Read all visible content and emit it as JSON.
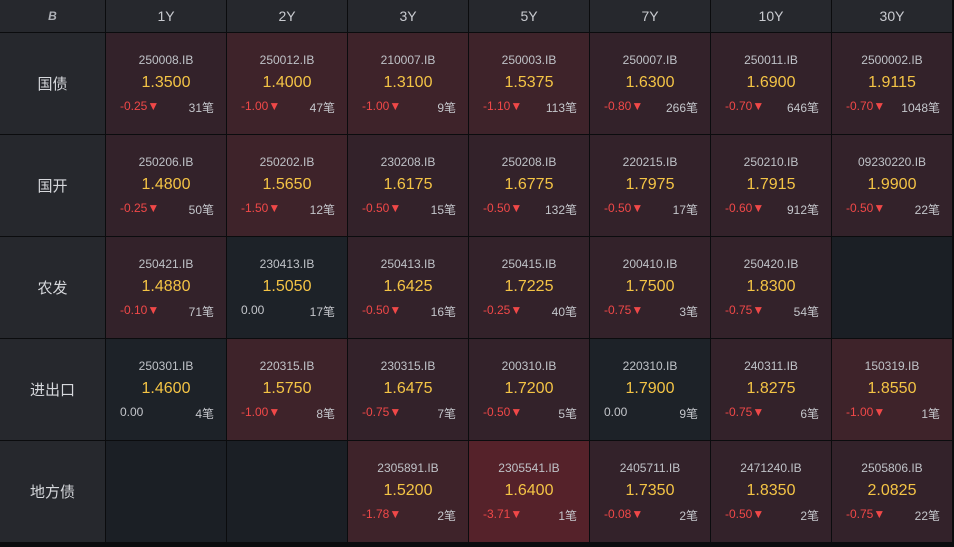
{
  "header": {
    "corner_icon": "logo-icon",
    "corner_text": "B",
    "tenors": [
      "1Y",
      "2Y",
      "3Y",
      "5Y",
      "7Y",
      "10Y",
      "30Y"
    ]
  },
  "rows": [
    {
      "label": "国债",
      "cells": [
        {
          "code": "250008.IB",
          "yield": "1.3500",
          "change": "-0.25▼",
          "count": "31笔",
          "tone": "t1"
        },
        {
          "code": "250012.IB",
          "yield": "1.4000",
          "change": "-1.00▼",
          "count": "47笔",
          "tone": "t2"
        },
        {
          "code": "210007.IB",
          "yield": "1.3100",
          "change": "-1.00▼",
          "count": "9笔",
          "tone": "t2"
        },
        {
          "code": "250003.IB",
          "yield": "1.5375",
          "change": "-1.10▼",
          "count": "113笔",
          "tone": "t2"
        },
        {
          "code": "250007.IB",
          "yield": "1.6300",
          "change": "-0.80▼",
          "count": "266笔",
          "tone": "t1"
        },
        {
          "code": "250011.IB",
          "yield": "1.6900",
          "change": "-0.70▼",
          "count": "646笔",
          "tone": "t1"
        },
        {
          "code": "2500002.IB",
          "yield": "1.9115",
          "change": "-0.70▼",
          "count": "1048笔",
          "tone": "t1"
        }
      ]
    },
    {
      "label": "国开",
      "cells": [
        {
          "code": "250206.IB",
          "yield": "1.4800",
          "change": "-0.25▼",
          "count": "50笔",
          "tone": "t1"
        },
        {
          "code": "250202.IB",
          "yield": "1.5650",
          "change": "-1.50▼",
          "count": "12笔",
          "tone": "t2"
        },
        {
          "code": "230208.IB",
          "yield": "1.6175",
          "change": "-0.50▼",
          "count": "15笔",
          "tone": "t1"
        },
        {
          "code": "250208.IB",
          "yield": "1.6775",
          "change": "-0.50▼",
          "count": "132笔",
          "tone": "t1"
        },
        {
          "code": "220215.IB",
          "yield": "1.7975",
          "change": "-0.50▼",
          "count": "17笔",
          "tone": "t1"
        },
        {
          "code": "250210.IB",
          "yield": "1.7915",
          "change": "-0.60▼",
          "count": "912笔",
          "tone": "t1"
        },
        {
          "code": "09230220.IB",
          "yield": "1.9900",
          "change": "-0.50▼",
          "count": "22笔",
          "tone": "t1"
        }
      ]
    },
    {
      "label": "农发",
      "cells": [
        {
          "code": "250421.IB",
          "yield": "1.4880",
          "change": "-0.10▼",
          "count": "71笔",
          "tone": "t1"
        },
        {
          "code": "230413.IB",
          "yield": "1.5050",
          "change": "0.00",
          "count": "17笔",
          "tone": "neutral"
        },
        {
          "code": "250413.IB",
          "yield": "1.6425",
          "change": "-0.50▼",
          "count": "16笔",
          "tone": "t1"
        },
        {
          "code": "250415.IB",
          "yield": "1.7225",
          "change": "-0.25▼",
          "count": "40笔",
          "tone": "t1"
        },
        {
          "code": "200410.IB",
          "yield": "1.7500",
          "change": "-0.75▼",
          "count": "3笔",
          "tone": "t1"
        },
        {
          "code": "250420.IB",
          "yield": "1.8300",
          "change": "-0.75▼",
          "count": "54笔",
          "tone": "t1"
        },
        null
      ]
    },
    {
      "label": "进出口",
      "cells": [
        {
          "code": "250301.IB",
          "yield": "1.4600",
          "change": "0.00",
          "count": "4笔",
          "tone": "neutral"
        },
        {
          "code": "220315.IB",
          "yield": "1.5750",
          "change": "-1.00▼",
          "count": "8笔",
          "tone": "t2"
        },
        {
          "code": "230315.IB",
          "yield": "1.6475",
          "change": "-0.75▼",
          "count": "7笔",
          "tone": "t1"
        },
        {
          "code": "200310.IB",
          "yield": "1.7200",
          "change": "-0.50▼",
          "count": "5笔",
          "tone": "t1"
        },
        {
          "code": "220310.IB",
          "yield": "1.7900",
          "change": "0.00",
          "count": "9笔",
          "tone": "neutral"
        },
        {
          "code": "240311.IB",
          "yield": "1.8275",
          "change": "-0.75▼",
          "count": "6笔",
          "tone": "t1"
        },
        {
          "code": "150319.IB",
          "yield": "1.8550",
          "change": "-1.00▼",
          "count": "1笔",
          "tone": "t2"
        }
      ]
    },
    {
      "label": "地方债",
      "cells": [
        null,
        null,
        {
          "code": "2305891.IB",
          "yield": "1.5200",
          "change": "-1.78▼",
          "count": "2笔",
          "tone": "t2"
        },
        {
          "code": "2305541.IB",
          "yield": "1.6400",
          "change": "-3.71▼",
          "count": "1笔",
          "tone": "t3"
        },
        {
          "code": "2405711.IB",
          "yield": "1.7350",
          "change": "-0.08▼",
          "count": "2笔",
          "tone": "t1"
        },
        {
          "code": "2471240.IB",
          "yield": "1.8350",
          "change": "-0.50▼",
          "count": "2笔",
          "tone": "t1"
        },
        {
          "code": "2505806.IB",
          "yield": "2.0825",
          "change": "-0.75▼",
          "count": "22笔",
          "tone": "t1"
        }
      ]
    }
  ]
}
